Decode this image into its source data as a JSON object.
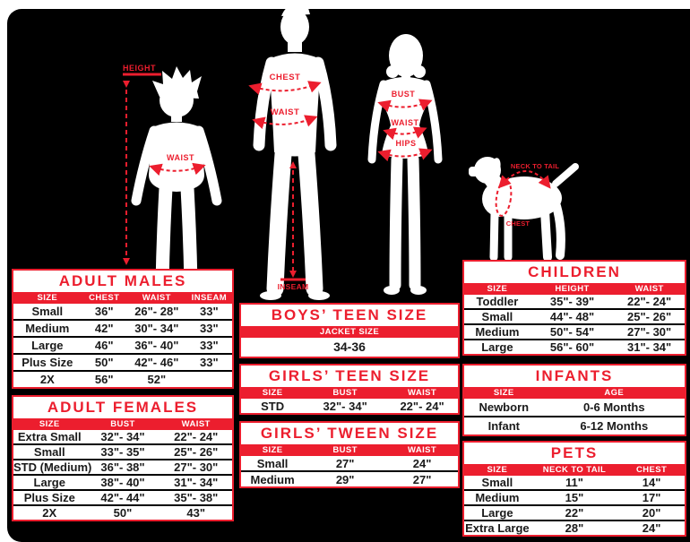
{
  "colors": {
    "accent_red": "#EC1E2E",
    "canvas_black": "#000000",
    "table_white": "#FFFFFF"
  },
  "figures": {
    "child": {
      "height_label": "HEIGHT",
      "waist_label": "WAIST"
    },
    "man": {
      "chest_label": "CHEST",
      "waist_label": "WAIST",
      "inseam_label": "INSEAM"
    },
    "woman": {
      "bust_label": "BUST",
      "waist_label": "WAIST",
      "hips_label": "HIPS"
    },
    "dog": {
      "neck_to_tail_label": "NECK TO TAIL",
      "chest_label": "CHEST"
    }
  },
  "tables": {
    "adult_males": {
      "title": "ADULT MALES",
      "headers": [
        "SIZE",
        "CHEST",
        "WAIST",
        "INSEAM"
      ],
      "rows": [
        [
          "Small",
          "36\"",
          "26\"- 28\"",
          "33\""
        ],
        [
          "Medium",
          "42\"",
          "30\"- 34\"",
          "33\""
        ],
        [
          "Large",
          "46\"",
          "36\"- 40\"",
          "33\""
        ],
        [
          "Plus Size",
          "50\"",
          "42\"- 46\"",
          "33\""
        ],
        [
          "2X",
          "56\"",
          "52\"",
          ""
        ]
      ]
    },
    "adult_females": {
      "title": "ADULT FEMALES",
      "headers": [
        "SIZE",
        "BUST",
        "WAIST"
      ],
      "rows": [
        [
          "Extra Small",
          "32\"- 34\"",
          "22\"- 24\""
        ],
        [
          "Small",
          "33\"- 35\"",
          "25\"- 26\""
        ],
        [
          "STD (Medium)",
          "36\"- 38\"",
          "27\"- 30\""
        ],
        [
          "Large",
          "38\"- 40\"",
          "31\"- 34\""
        ],
        [
          "Plus Size",
          "42\"- 44\"",
          "35\"- 38\""
        ],
        [
          "2X",
          "50\"",
          "43\""
        ]
      ]
    },
    "boys_teen": {
      "title": "BOYS’ TEEN SIZE",
      "headers": [
        "JACKET SIZE"
      ],
      "rows": [
        [
          "34-36"
        ]
      ]
    },
    "girls_teen": {
      "title": "GIRLS’ TEEN SIZE",
      "headers": [
        "SIZE",
        "BUST",
        "WAIST"
      ],
      "rows": [
        [
          "STD",
          "32\"- 34\"",
          "22\"- 24\""
        ]
      ]
    },
    "girls_tween": {
      "title": "GIRLS’ TWEEN SIZE",
      "headers": [
        "SIZE",
        "BUST",
        "WAIST"
      ],
      "rows": [
        [
          "Small",
          "27\"",
          "24\""
        ],
        [
          "Medium",
          "29\"",
          "27\""
        ]
      ]
    },
    "children": {
      "title": "CHILDREN",
      "headers": [
        "SIZE",
        "HEIGHT",
        "WAIST"
      ],
      "rows": [
        [
          "Toddler",
          "35\"- 39\"",
          "22\"- 24\""
        ],
        [
          "Small",
          "44\"- 48\"",
          "25\"- 26\""
        ],
        [
          "Medium",
          "50\"- 54\"",
          "27\"- 30\""
        ],
        [
          "Large",
          "56\"- 60\"",
          "31\"- 34\""
        ]
      ]
    },
    "infants": {
      "title": "INFANTS",
      "headers": [
        "SIZE",
        "AGE"
      ],
      "rows": [
        [
          "Newborn",
          "0-6 Months"
        ],
        [
          "Infant",
          "6-12 Months"
        ]
      ]
    },
    "pets": {
      "title": "PETS",
      "headers": [
        "SIZE",
        "NECK TO TAIL",
        "CHEST"
      ],
      "rows": [
        [
          "Small",
          "11\"",
          "14\""
        ],
        [
          "Medium",
          "15\"",
          "17\""
        ],
        [
          "Large",
          "22\"",
          "20\""
        ],
        [
          "Extra Large",
          "28\"",
          "24\""
        ]
      ]
    }
  }
}
